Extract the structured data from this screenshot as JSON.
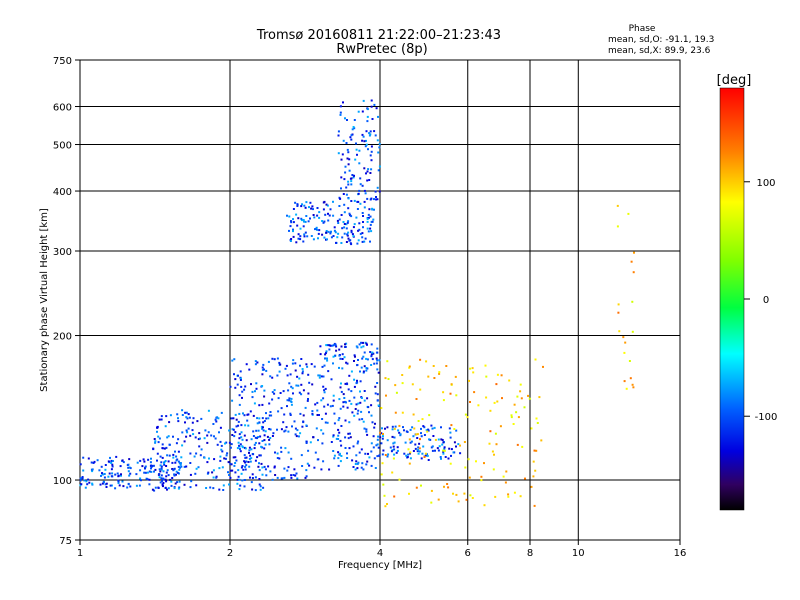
{
  "chart_data": {
    "type": "scatter",
    "title": "Tromsø 20160811 21:22:00–21:23:43",
    "subtitle": "RwPretec (8p)",
    "xlabel": "Frequency [MHz]",
    "ylabel": "Stationary phase Virtual Height [km]",
    "x_scale": "log",
    "y_scale": "log",
    "xlim": [
      1,
      16
    ],
    "ylim": [
      75,
      750
    ],
    "x_ticks": [
      1,
      2,
      4,
      6,
      8,
      10,
      16
    ],
    "x_tick_labels": [
      "1",
      "2",
      "4",
      "6",
      "8",
      "10",
      "16"
    ],
    "y_ticks": [
      75,
      100,
      200,
      300,
      400,
      500,
      600,
      750
    ],
    "y_tick_labels": [
      "75",
      "100",
      "200",
      "300",
      "400",
      "500",
      "600",
      "750"
    ],
    "grid": true,
    "stats": {
      "heading": "Phase",
      "line_o": "mean, sd,O: -91.1, 19.3",
      "line_x": "mean, sd,X: 89.9, 23.6"
    },
    "colorbar": {
      "label": "[deg]",
      "range": [
        -180,
        180
      ],
      "ticks": [
        100,
        0,
        -100
      ],
      "tick_labels": [
        "100",
        "0",
        "-100"
      ]
    },
    "series": [
      {
        "color_value_deg": -100,
        "clusters": [
          {
            "x_range": [
              1.0,
              1.6
            ],
            "y_range": [
              96,
              112
            ],
            "count": 180
          },
          {
            "x_range": [
              1.4,
              2.4
            ],
            "y_range": [
              95,
              140
            ],
            "count": 260
          },
          {
            "x_range": [
              2.0,
              3.0
            ],
            "y_range": [
              100,
              180
            ],
            "count": 260
          },
          {
            "x_range": [
              3.0,
              4.0
            ],
            "y_range": [
              105,
              195
            ],
            "count": 260
          },
          {
            "x_range": [
              4.0,
              5.8
            ],
            "y_range": [
              110,
              130
            ],
            "count": 120
          },
          {
            "x_range": [
              2.6,
              3.9
            ],
            "y_range": [
              310,
              380
            ],
            "count": 180
          },
          {
            "x_range": [
              3.3,
              4.0
            ],
            "y_range": [
              380,
              620
            ],
            "count": 120
          }
        ]
      },
      {
        "color_value_deg": 100,
        "clusters": [
          {
            "x_range": [
              4.0,
              8.5
            ],
            "y_range": [
              88,
              180
            ],
            "count": 160
          },
          {
            "x_range": [
              12.0,
              13.0
            ],
            "y_range": [
              150,
              390
            ],
            "count": 20
          }
        ]
      }
    ]
  }
}
